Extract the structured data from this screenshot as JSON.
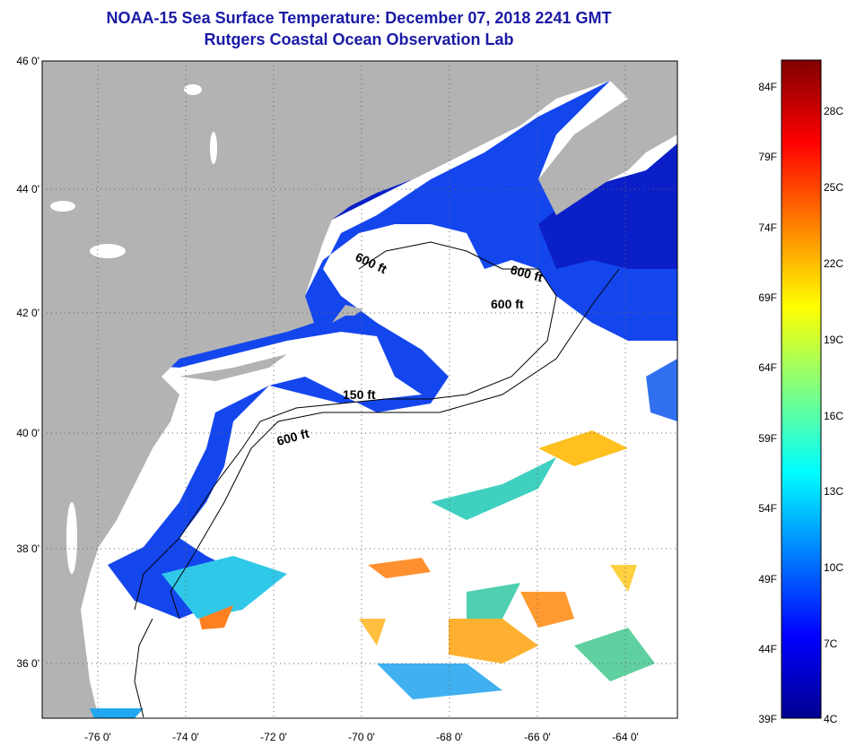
{
  "header": {
    "title": "NOAA-15 Sea Surface Temperature:  December 07, 2018 2241 GMT",
    "subtitle": "Rutgers Coastal Ocean Observation Lab"
  },
  "map": {
    "lat_labels": [
      "46 0'",
      "44 0'",
      "42 0'",
      "40 0'",
      "38 0'",
      "36 0'"
    ],
    "lat_values": [
      46,
      44,
      42,
      40,
      38,
      36
    ],
    "lon_labels": [
      "-76 0'",
      "-74 0'",
      "-72 0'",
      "-70 0'",
      "-68 0'",
      "-66 0'",
      "-64 0'"
    ],
    "lon_values": [
      -76,
      -74,
      -72,
      -70,
      -68,
      -66,
      -64
    ],
    "lat_range": [
      35,
      46
    ],
    "lon_range": [
      -77,
      -62.5
    ],
    "land_color": "#b3b3b3",
    "nodata_color": "#ffffff",
    "contour_labels": [
      "600 ft",
      "600 ft",
      "600 ft",
      "150 ft",
      "600 ft"
    ]
  },
  "colorbar": {
    "fahrenheit_labels": [
      "84F",
      "79F",
      "74F",
      "69F",
      "64F",
      "59F",
      "54F",
      "49F",
      "44F",
      "39F"
    ],
    "celsius_labels": [
      "28C",
      "25C",
      "22C",
      "19C",
      "16C",
      "13C",
      "10C",
      "7C",
      "4C"
    ],
    "colors": [
      "#00008f",
      "#0000ff",
      "#0080ff",
      "#00ffff",
      "#80ff80",
      "#ffff00",
      "#ff8000",
      "#ff0000",
      "#800000"
    ]
  }
}
